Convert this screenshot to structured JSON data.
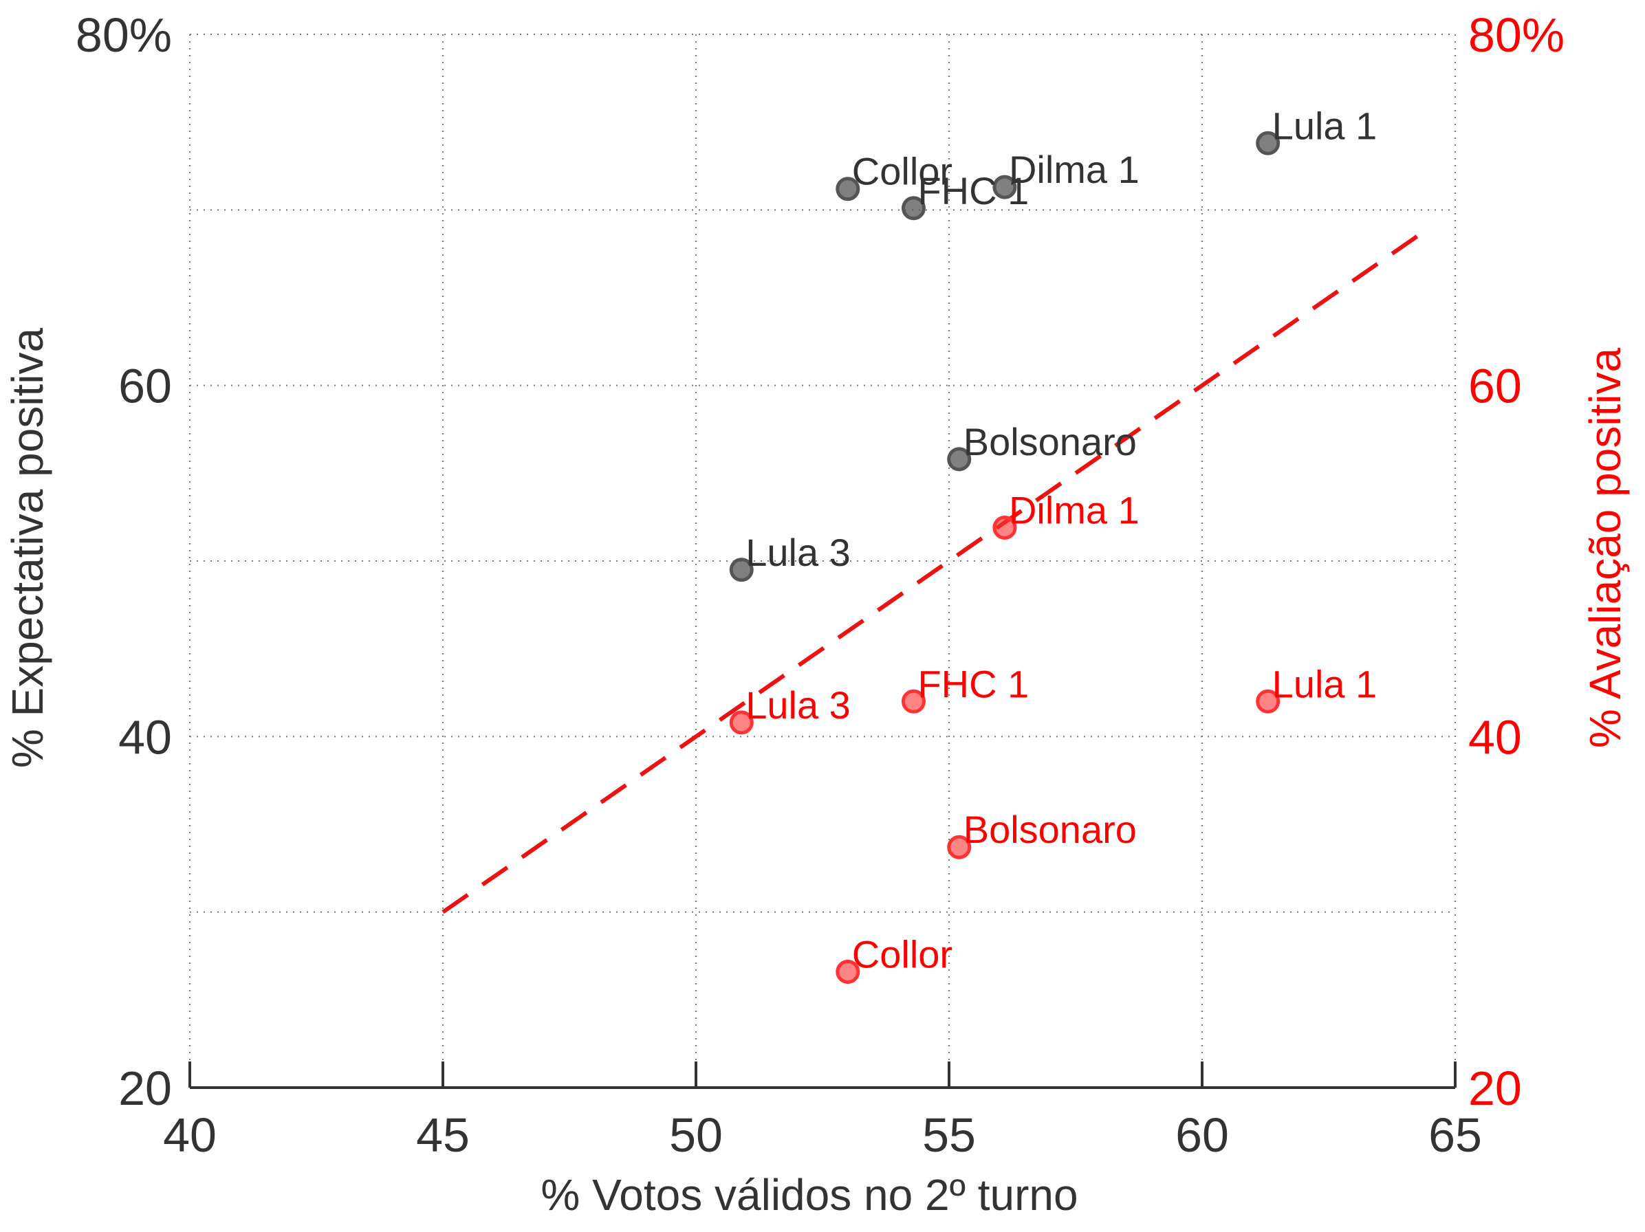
{
  "chart_data": {
    "type": "scatter",
    "xlabel": "% Votos válidos no 2º turno",
    "ylabel_left": "% Expectativa positiva",
    "ylabel_right": "% Avaliação positiva",
    "xlim": [
      40,
      65
    ],
    "ylim": [
      20,
      80
    ],
    "x_ticks": [
      "40",
      "45",
      "50",
      "55",
      "60",
      "65"
    ],
    "y_ticks_left": [
      "20",
      "",
      "40",
      "",
      "60",
      "",
      "80%"
    ],
    "y_ticks_right": [
      "20",
      "",
      "40",
      "",
      "60",
      "",
      "80%"
    ],
    "grid": true,
    "colors": {
      "expectativa": "#555555",
      "avaliacao": "#ff3333",
      "trend": "#ee1111",
      "right_axis": "#ff0000",
      "text_dark": "#333333"
    },
    "series": [
      {
        "key": "expectativa",
        "points": [
          {
            "label": "Collor",
            "x": 53.0,
            "y": 71.2
          },
          {
            "label": "FHC 1",
            "x": 54.3,
            "y": 70.1
          },
          {
            "label": "Dilma 1",
            "x": 56.1,
            "y": 71.3
          },
          {
            "label": "Lula 1",
            "x": 61.3,
            "y": 73.8
          },
          {
            "label": "Bolsonaro",
            "x": 55.2,
            "y": 55.8
          },
          {
            "label": "Lula 3",
            "x": 50.9,
            "y": 49.5
          }
        ]
      },
      {
        "key": "avaliacao",
        "points": [
          {
            "label": "Dilma 1",
            "x": 56.1,
            "y": 51.9
          },
          {
            "label": "FHC 1",
            "x": 54.3,
            "y": 42.0
          },
          {
            "label": "Lula 1",
            "x": 61.3,
            "y": 42.0
          },
          {
            "label": "Lula 3",
            "x": 50.9,
            "y": 40.8
          },
          {
            "label": "Bolsonaro",
            "x": 55.2,
            "y": 33.7
          },
          {
            "label": "Collor",
            "x": 53.0,
            "y": 26.6
          }
        ]
      }
    ],
    "trend_line": {
      "x": [
        45,
        64.5
      ],
      "y": [
        30,
        69
      ],
      "style": "dashed"
    }
  }
}
